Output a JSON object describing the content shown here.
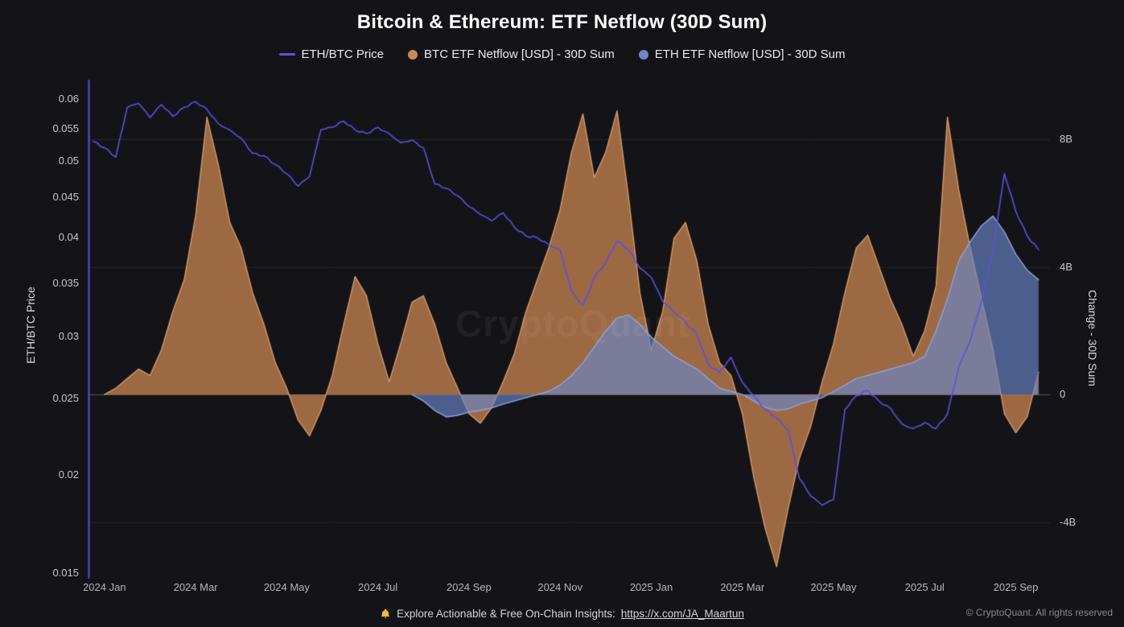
{
  "title": "Bitcoin & Ethereum: ETF Netflow (30D Sum)",
  "legend": [
    {
      "label": "ETH/BTC Price",
      "color": "#5b50e0"
    },
    {
      "label": "BTC ETF Netflow [USD] - 30D Sum",
      "color": "#c68b57"
    },
    {
      "label": "ETH ETF Netflow [USD] - 30D Sum",
      "color": "#6d87c6"
    }
  ],
  "watermark": "CryptoQuant",
  "footer": {
    "insight_text": "Explore Actionable & Free On-Chain Insights:",
    "link": "https://x.com/JA_Maartun",
    "bell_color": "#f5b83d",
    "copyright": "© CryptoQuant. All rights reserved"
  },
  "chart_data": {
    "type": "area+line",
    "title": "Bitcoin & Ethereum: ETF Netflow (30D Sum)",
    "x_unit": "months since 2024-01",
    "x_domain": [
      -0.35,
      20.75
    ],
    "x_ticks": [
      {
        "t": 0,
        "label": "2024 Jan"
      },
      {
        "t": 2,
        "label": "2024 Mar"
      },
      {
        "t": 4,
        "label": "2024 May"
      },
      {
        "t": 6,
        "label": "2024 Jul"
      },
      {
        "t": 8,
        "label": "2024 Sep"
      },
      {
        "t": 10,
        "label": "2024 Nov"
      },
      {
        "t": 12,
        "label": "2025 Jan"
      },
      {
        "t": 14,
        "label": "2025 Mar"
      },
      {
        "t": 16,
        "label": "2025 May"
      },
      {
        "t": 18,
        "label": "2025 Jul"
      },
      {
        "t": 20,
        "label": "2025 Sep"
      }
    ],
    "left_axis": {
      "title": "ETH/BTC Price",
      "scale": "log",
      "domain": [
        0.0148,
        0.0633
      ],
      "ticks": [
        {
          "v": 0.06,
          "label": "0.06"
        },
        {
          "v": 0.055,
          "label": "0.055"
        },
        {
          "v": 0.05,
          "label": "0.05"
        },
        {
          "v": 0.045,
          "label": "0.045"
        },
        {
          "v": 0.04,
          "label": "0.04"
        },
        {
          "v": 0.035,
          "label": "0.035"
        },
        {
          "v": 0.03,
          "label": "0.03"
        },
        {
          "v": 0.025,
          "label": "0.025"
        },
        {
          "v": 0.02,
          "label": "0.02"
        },
        {
          "v": 0.015,
          "label": "0.015"
        }
      ]
    },
    "right_axis": {
      "title": "Change - 30D Sum",
      "scale": "linear",
      "domain": [
        -5.75,
        9.85
      ],
      "ticks": [
        {
          "v": 8,
          "label": "8B"
        },
        {
          "v": 4,
          "label": "4B"
        },
        {
          "v": 0,
          "label": "0"
        },
        {
          "v": -4,
          "label": "-4B"
        }
      ]
    },
    "series": [
      {
        "name": "BTC ETF Netflow [USD] - 30D Sum",
        "kind": "area",
        "axis": "right",
        "unit": "billion USD",
        "stroke": "#d49a6a",
        "fill": "rgba(187,124,77,0.82)",
        "x_start": 0,
        "x_step": 0.25,
        "values": [
          0.0,
          0.2,
          0.5,
          0.8,
          0.6,
          1.4,
          2.6,
          3.6,
          5.6,
          8.7,
          7.2,
          5.4,
          4.6,
          3.2,
          2.2,
          1.0,
          0.2,
          -0.8,
          -1.3,
          -0.5,
          0.6,
          2.2,
          3.7,
          3.1,
          1.6,
          0.4,
          1.6,
          2.9,
          3.1,
          2.2,
          1.0,
          0.2,
          -0.6,
          -0.9,
          -0.4,
          0.4,
          1.3,
          2.6,
          3.6,
          4.6,
          5.8,
          7.6,
          8.8,
          6.8,
          7.6,
          8.9,
          6.2,
          3.2,
          1.4,
          2.6,
          4.9,
          5.4,
          4.2,
          2.2,
          1.0,
          0.6,
          -0.6,
          -2.6,
          -4.2,
          -5.4,
          -3.6,
          -2.0,
          -1.0,
          0.4,
          1.6,
          3.2,
          4.6,
          5.0,
          4.0,
          3.0,
          2.2,
          1.2,
          2.0,
          3.4,
          8.7,
          6.4,
          4.6,
          3.0,
          1.4,
          -0.6,
          -1.2,
          -0.7,
          0.7
        ]
      },
      {
        "name": "ETH ETF Netflow [USD] - 30D Sum",
        "kind": "area",
        "axis": "right",
        "unit": "billion USD",
        "stroke": "#8ea5da",
        "fill": "rgba(106,134,199,0.66)",
        "x_start": 6.75,
        "x_step": 0.25,
        "values": [
          0.0,
          -0.2,
          -0.5,
          -0.7,
          -0.65,
          -0.55,
          -0.5,
          -0.42,
          -0.3,
          -0.2,
          -0.1,
          0.0,
          0.1,
          0.3,
          0.6,
          1.0,
          1.5,
          2.0,
          2.4,
          2.5,
          2.2,
          1.8,
          1.5,
          1.2,
          1.0,
          0.8,
          0.5,
          0.2,
          0.1,
          0.0,
          -0.2,
          -0.4,
          -0.5,
          -0.45,
          -0.3,
          -0.2,
          -0.1,
          0.1,
          0.3,
          0.5,
          0.6,
          0.7,
          0.8,
          0.9,
          1.0,
          1.2,
          2.0,
          3.0,
          4.2,
          4.8,
          5.3,
          5.6,
          5.1,
          4.4,
          3.9,
          3.6
        ]
      },
      {
        "name": "ETH/BTC Price",
        "kind": "line",
        "axis": "left",
        "unit": "ratio",
        "color": "#5b50e0",
        "x_start": -0.25,
        "x_step": 0.25,
        "values": [
          0.053,
          0.052,
          0.0506,
          0.0585,
          0.0592,
          0.0568,
          0.059,
          0.057,
          0.0585,
          0.0595,
          0.0582,
          0.0558,
          0.0548,
          0.0535,
          0.0512,
          0.0508,
          0.0495,
          0.0482,
          0.0465,
          0.0478,
          0.0548,
          0.0552,
          0.0562,
          0.0548,
          0.0542,
          0.0552,
          0.0542,
          0.0528,
          0.0532,
          0.052,
          0.0468,
          0.0462,
          0.0452,
          0.0438,
          0.0428,
          0.042,
          0.043,
          0.0412,
          0.0402,
          0.04,
          0.0392,
          0.0386,
          0.0342,
          0.0328,
          0.0356,
          0.0372,
          0.0396,
          0.0386,
          0.0366,
          0.0356,
          0.0332,
          0.0322,
          0.0312,
          0.0302,
          0.0276,
          0.027,
          0.0282,
          0.0262,
          0.0252,
          0.0242,
          0.0236,
          0.0228,
          0.0198,
          0.0188,
          0.0183,
          0.0186,
          0.0242,
          0.0252,
          0.0256,
          0.0248,
          0.0243,
          0.0232,
          0.0229,
          0.0233,
          0.0229,
          0.0239,
          0.0274,
          0.0296,
          0.0332,
          0.0385,
          0.0482,
          0.0432,
          0.0402,
          0.0386
        ]
      }
    ]
  }
}
